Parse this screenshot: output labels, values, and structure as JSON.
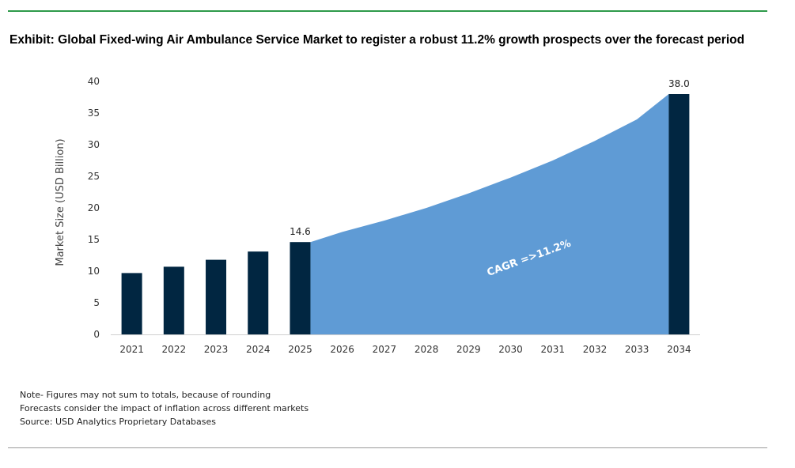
{
  "title": "Exhibit: Global Fixed-wing Air Ambulance Service Market to register a robust 11.2% growth prospects over the forecast period",
  "notes": [
    "Note- Figures may not sum to totals, because of rounding",
    "Forecasts consider the impact of inflation across different markets",
    "Source: USD Analytics Proprietary Databases"
  ],
  "colors": {
    "accent_rule": "#2e9a4a",
    "bar": "#012641",
    "area": "#5f9bd5"
  },
  "chart_data": {
    "type": "bar",
    "title": "Exhibit: Global Fixed-wing Air Ambulance Service Market to register a robust 11.2% growth prospects over the forecast period",
    "xlabel": "",
    "ylabel": "Market Size (USD Billion)",
    "ylim": [
      0,
      40
    ],
    "yticks": [
      0,
      5,
      10,
      15,
      20,
      25,
      30,
      35,
      40
    ],
    "categories": [
      "2021",
      "2022",
      "2023",
      "2024",
      "2025",
      "2026",
      "2027",
      "2028",
      "2029",
      "2030",
      "2031",
      "2032",
      "2033",
      "2034"
    ],
    "bars": [
      {
        "category": "2021",
        "value": 9.7
      },
      {
        "category": "2022",
        "value": 10.7
      },
      {
        "category": "2023",
        "value": 11.8
      },
      {
        "category": "2024",
        "value": 13.1
      },
      {
        "category": "2025",
        "value": 14.6,
        "label": "14.6"
      },
      {
        "category": "2034",
        "value": 38.0,
        "label": "38.0"
      }
    ],
    "forecast_area": {
      "categories": [
        "2025",
        "2026",
        "2027",
        "2028",
        "2029",
        "2030",
        "2031",
        "2032",
        "2033",
        "2034"
      ],
      "values": [
        14.6,
        16.2,
        18.0,
        20.0,
        22.3,
        24.8,
        27.5,
        30.6,
        34.0,
        38.0
      ]
    },
    "annotation": "CAGR =>11.2%",
    "grid": false,
    "legend": "none"
  }
}
